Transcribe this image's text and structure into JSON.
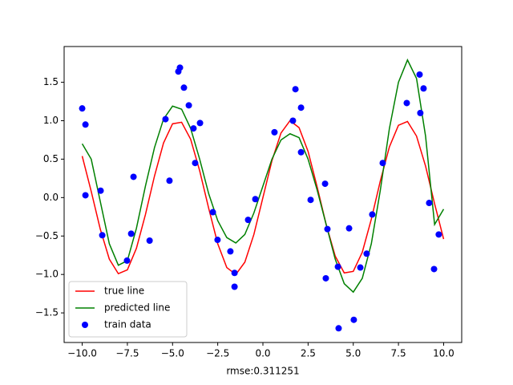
{
  "chart_data": {
    "type": "line",
    "x_label": "rmse:0.311251",
    "x": [
      -10,
      -9.5,
      -9,
      -8.5,
      -8,
      -7.5,
      -7,
      -6.5,
      -6,
      -5.5,
      -5,
      -4.5,
      -4,
      -3.5,
      -3,
      -2.5,
      -2,
      -1.5,
      -1,
      -0.5,
      0,
      0.5,
      1,
      1.5,
      2,
      2.5,
      3,
      3.5,
      4,
      4.5,
      5,
      5.5,
      6,
      6.5,
      7,
      7.5,
      8,
      8.5,
      9,
      9.5,
      10
    ],
    "series": [
      {
        "name": "true line",
        "type": "line",
        "color": "#ff0000",
        "values": [
          0.54,
          0.08,
          -0.41,
          -0.8,
          -0.99,
          -0.94,
          -0.66,
          -0.22,
          0.28,
          0.71,
          0.96,
          0.98,
          0.76,
          0.35,
          -0.14,
          -0.6,
          -0.91,
          -1.0,
          -0.84,
          -0.48,
          0,
          0.48,
          0.84,
          1.0,
          0.91,
          0.6,
          0.14,
          -0.35,
          -0.76,
          -0.98,
          -0.96,
          -0.71,
          -0.28,
          0.22,
          0.66,
          0.94,
          0.99,
          0.8,
          0.41,
          -0.08,
          -0.54
        ]
      },
      {
        "name": "predicted line",
        "type": "line",
        "color": "#008000",
        "values": [
          0.7,
          0.5,
          -0.05,
          -0.6,
          -0.88,
          -0.82,
          -0.4,
          0.15,
          0.65,
          1.02,
          1.19,
          1.15,
          0.9,
          0.5,
          0.05,
          -0.3,
          -0.52,
          -0.59,
          -0.48,
          -0.2,
          0.15,
          0.5,
          0.75,
          0.83,
          0.78,
          0.5,
          0.1,
          -0.35,
          -0.8,
          -1.12,
          -1.23,
          -1.05,
          -0.6,
          0.1,
          0.9,
          1.5,
          1.79,
          1.55,
          0.8,
          -0.35,
          -0.15
        ]
      },
      {
        "name": "train data",
        "type": "scatter",
        "color": "#0000ff",
        "x": [
          -10.0,
          -9.82,
          -9.82,
          -8.98,
          -8.89,
          -7.52,
          -7.29,
          -7.16,
          -6.27,
          -5.39,
          -5.17,
          -4.68,
          -4.59,
          -4.37,
          -4.1,
          -3.84,
          -3.75,
          -3.48,
          -2.77,
          -2.51,
          -1.8,
          -1.57,
          -1.57,
          -0.82,
          -0.42,
          0.64,
          1.66,
          1.8,
          2.11,
          2.11,
          2.64,
          3.44,
          3.48,
          3.57,
          4.15,
          4.19,
          4.77,
          5.03,
          5.39,
          5.74,
          6.05,
          6.63,
          7.96,
          8.67,
          8.71,
          8.89,
          9.2,
          9.47,
          9.73
        ],
        "values": [
          1.16,
          0.95,
          0.03,
          0.09,
          -0.49,
          -0.82,
          -0.47,
          0.27,
          -0.56,
          1.02,
          0.22,
          1.64,
          1.69,
          1.43,
          1.2,
          0.9,
          0.45,
          0.97,
          -0.19,
          -0.55,
          -0.7,
          -0.98,
          -1.16,
          -0.29,
          -0.02,
          0.85,
          1.0,
          1.41,
          1.17,
          0.59,
          -0.03,
          0.18,
          -1.05,
          -0.41,
          -0.9,
          -1.7,
          -0.4,
          -1.59,
          -0.91,
          -0.73,
          -0.22,
          0.45,
          1.23,
          1.6,
          1.1,
          1.42,
          -0.07,
          -0.93,
          -0.48
        ]
      }
    ],
    "xlim": [
      -11,
      11
    ],
    "ylim": [
      -1.885,
      1.965
    ],
    "xticks": [
      {
        "value": -10,
        "label": "−10.0"
      },
      {
        "value": -7.5,
        "label": "−7.5"
      },
      {
        "value": -5,
        "label": "−5.0"
      },
      {
        "value": -2.5,
        "label": "−2.5"
      },
      {
        "value": 0,
        "label": "0.0"
      },
      {
        "value": 2.5,
        "label": "2.5"
      },
      {
        "value": 5,
        "label": "5.0"
      },
      {
        "value": 7.5,
        "label": "7.5"
      },
      {
        "value": 10,
        "label": "10.0"
      }
    ],
    "yticks": [
      {
        "value": -1.5,
        "label": "−1.5"
      },
      {
        "value": -1,
        "label": "−1.0"
      },
      {
        "value": -0.5,
        "label": "−0.5"
      },
      {
        "value": 0,
        "label": "0.0"
      },
      {
        "value": 0.5,
        "label": "0.5"
      },
      {
        "value": 1,
        "label": "1.0"
      },
      {
        "value": 1.5,
        "label": "1.5"
      }
    ],
    "legend": "lower left"
  }
}
